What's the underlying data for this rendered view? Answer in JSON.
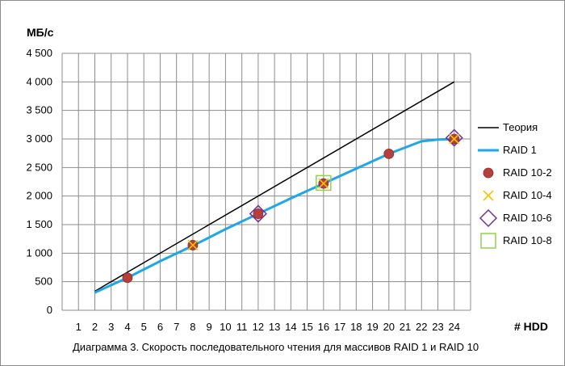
{
  "chart_data": {
    "type": "line",
    "ylabel": "МБ/с",
    "xlabel": "# HDD",
    "caption": "Диаграмма 3. Скорость последовательного чтения для массивов RAID 1  и RAID 10",
    "x_ticks": [
      "1",
      "2",
      "3",
      "4",
      "5",
      "6",
      "7",
      "8",
      "9",
      "10",
      "11",
      "12",
      "13",
      "14",
      "15",
      "16",
      "17",
      "18",
      "19",
      "20",
      "21",
      "22",
      "23",
      "24"
    ],
    "y_ticks": [
      "0",
      "500",
      "1 000",
      "1 500",
      "2 000",
      "2 500",
      "3 000",
      "3 500",
      "4 000",
      "4 500"
    ],
    "xlim": [
      1,
      24
    ],
    "ylim": [
      0,
      4500
    ],
    "grid": true,
    "legend_position": "right",
    "series": [
      {
        "name": "Теория",
        "kind": "line",
        "color": "#000000",
        "x": [
          2,
          24
        ],
        "y": [
          333,
          4000
        ]
      },
      {
        "name": "RAID 1",
        "kind": "line",
        "color": "#1ea7e6",
        "x": [
          2,
          4,
          6,
          8,
          10,
          12,
          14,
          16,
          18,
          20,
          22,
          23,
          24
        ],
        "y": [
          310,
          570,
          860,
          1130,
          1420,
          1690,
          1960,
          2220,
          2480,
          2740,
          2960,
          2990,
          3000
        ]
      },
      {
        "name": "RAID 10-2",
        "kind": "marker",
        "marker": "circle",
        "color": "#b5403b",
        "x": [
          4,
          8,
          12,
          16,
          20,
          24
        ],
        "y": [
          570,
          1140,
          1690,
          2220,
          2740,
          3000
        ]
      },
      {
        "name": "RAID 10-4",
        "kind": "marker",
        "marker": "x",
        "color": "#f5c400",
        "x": [
          8,
          16,
          24
        ],
        "y": [
          1140,
          2220,
          3000
        ]
      },
      {
        "name": "RAID 10-6",
        "kind": "marker",
        "marker": "diamond",
        "color": "#7030a0",
        "x": [
          12,
          24
        ],
        "y": [
          1690,
          3020
        ]
      },
      {
        "name": "RAID 10-8",
        "kind": "marker",
        "marker": "square",
        "color": "#92d050",
        "x": [
          16
        ],
        "y": [
          2230
        ]
      }
    ]
  }
}
